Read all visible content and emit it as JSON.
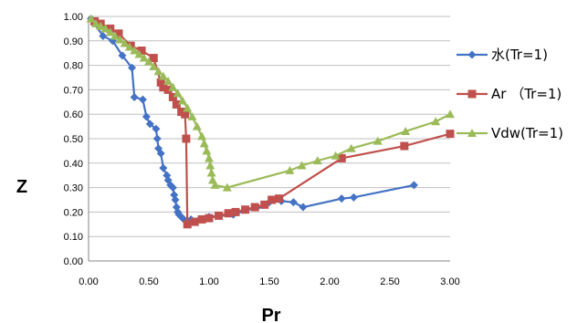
{
  "chart_data": {
    "type": "scatter",
    "title": "",
    "xlabel": "Pr",
    "ylabel": "Z",
    "xlim": [
      0,
      3
    ],
    "ylim": [
      0,
      1
    ],
    "grid": "horizontal",
    "legend_position": "right",
    "x_ticks": [
      "0.00",
      "0.50",
      "1.00",
      "1.50",
      "2.00",
      "2.50",
      "3.00"
    ],
    "y_ticks": [
      "0.00",
      "0.10",
      "0.20",
      "0.30",
      "0.40",
      "0.50",
      "0.60",
      "0.70",
      "0.80",
      "0.90",
      "1.00"
    ],
    "series": [
      {
        "name": "水(Tr=1)",
        "color": "#4472C4",
        "marker": "diamond",
        "points": [
          [
            0.02,
            0.99
          ],
          [
            0.12,
            0.92
          ],
          [
            0.2,
            0.9
          ],
          [
            0.28,
            0.84
          ],
          [
            0.36,
            0.79
          ],
          [
            0.38,
            0.67
          ],
          [
            0.45,
            0.66
          ],
          [
            0.48,
            0.59
          ],
          [
            0.51,
            0.56
          ],
          [
            0.56,
            0.54
          ],
          [
            0.57,
            0.5
          ],
          [
            0.58,
            0.46
          ],
          [
            0.6,
            0.44
          ],
          [
            0.62,
            0.38
          ],
          [
            0.65,
            0.35
          ],
          [
            0.66,
            0.33
          ],
          [
            0.68,
            0.31
          ],
          [
            0.7,
            0.3
          ],
          [
            0.71,
            0.27
          ],
          [
            0.72,
            0.25
          ],
          [
            0.73,
            0.22
          ],
          [
            0.74,
            0.2
          ],
          [
            0.75,
            0.19
          ],
          [
            0.77,
            0.18
          ],
          [
            0.8,
            0.165
          ],
          [
            0.85,
            0.17
          ],
          [
            1.0,
            0.18
          ],
          [
            1.2,
            0.19
          ],
          [
            1.4,
            0.22
          ],
          [
            1.5,
            0.24
          ],
          [
            1.6,
            0.245
          ],
          [
            1.7,
            0.24
          ],
          [
            1.78,
            0.22
          ],
          [
            2.1,
            0.255
          ],
          [
            2.2,
            0.26
          ],
          [
            2.7,
            0.31
          ]
        ]
      },
      {
        "name": "Ar （Tr=1)",
        "color": "#C0504D",
        "marker": "square",
        "points": [
          [
            0.05,
            0.98
          ],
          [
            0.1,
            0.97
          ],
          [
            0.18,
            0.95
          ],
          [
            0.25,
            0.93
          ],
          [
            0.35,
            0.88
          ],
          [
            0.44,
            0.86
          ],
          [
            0.54,
            0.83
          ],
          [
            0.6,
            0.73
          ],
          [
            0.62,
            0.71
          ],
          [
            0.66,
            0.7
          ],
          [
            0.7,
            0.67
          ],
          [
            0.73,
            0.64
          ],
          [
            0.77,
            0.61
          ],
          [
            0.8,
            0.6
          ],
          [
            0.81,
            0.5
          ],
          [
            0.82,
            0.15
          ],
          [
            0.88,
            0.16
          ],
          [
            0.94,
            0.17
          ],
          [
            1.0,
            0.175
          ],
          [
            1.08,
            0.185
          ],
          [
            1.16,
            0.195
          ],
          [
            1.22,
            0.2
          ],
          [
            1.3,
            0.21
          ],
          [
            1.38,
            0.22
          ],
          [
            1.46,
            0.23
          ],
          [
            1.52,
            0.25
          ],
          [
            1.58,
            0.255
          ],
          [
            2.1,
            0.42
          ],
          [
            2.62,
            0.47
          ],
          [
            3.0,
            0.52
          ]
        ]
      },
      {
        "name": "Vdw(Tr=1)",
        "color": "#9BBB59",
        "marker": "triangle",
        "points": [
          [
            0.02,
            0.99
          ],
          [
            0.06,
            0.97
          ],
          [
            0.1,
            0.96
          ],
          [
            0.14,
            0.95
          ],
          [
            0.18,
            0.935
          ],
          [
            0.22,
            0.92
          ],
          [
            0.26,
            0.905
          ],
          [
            0.3,
            0.89
          ],
          [
            0.34,
            0.875
          ],
          [
            0.38,
            0.86
          ],
          [
            0.42,
            0.845
          ],
          [
            0.46,
            0.83
          ],
          [
            0.5,
            0.815
          ],
          [
            0.54,
            0.795
          ],
          [
            0.58,
            0.775
          ],
          [
            0.62,
            0.755
          ],
          [
            0.66,
            0.735
          ],
          [
            0.7,
            0.71
          ],
          [
            0.74,
            0.685
          ],
          [
            0.78,
            0.655
          ],
          [
            0.82,
            0.625
          ],
          [
            0.86,
            0.59
          ],
          [
            0.9,
            0.55
          ],
          [
            0.94,
            0.51
          ],
          [
            0.96,
            0.48
          ],
          [
            0.98,
            0.45
          ],
          [
            1.0,
            0.42
          ],
          [
            1.01,
            0.39
          ],
          [
            1.02,
            0.36
          ],
          [
            1.03,
            0.33
          ],
          [
            1.05,
            0.31
          ],
          [
            1.15,
            0.3
          ],
          [
            1.67,
            0.37
          ],
          [
            1.77,
            0.39
          ],
          [
            1.9,
            0.41
          ],
          [
            2.05,
            0.43
          ],
          [
            2.18,
            0.46
          ],
          [
            2.4,
            0.49
          ],
          [
            2.63,
            0.53
          ],
          [
            2.88,
            0.57
          ],
          [
            3.0,
            0.6
          ]
        ]
      }
    ]
  }
}
